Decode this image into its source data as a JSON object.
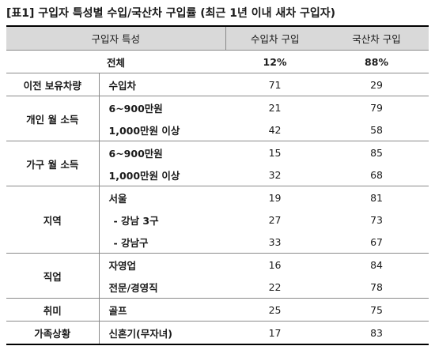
{
  "title": "[표1] 구입자 특성별 수입/국산차 구입률 (최근 1년 이내 새차 구입자)",
  "header": {
    "col1": "구입자 특성",
    "col2": "수입차 구입",
    "col3": "국산차 구입"
  },
  "total": {
    "label": "전체",
    "import": "12%",
    "domestic": "88%"
  },
  "groups": {
    "g1": {
      "label": "이전 보유차량",
      "rows": [
        {
          "label": "수입차",
          "import": "71",
          "domestic": "29"
        }
      ]
    },
    "g2": {
      "label": "개인 월 소득",
      "rows": [
        {
          "label": "6~900만원",
          "import": "21",
          "domestic": "79"
        },
        {
          "label": "1,000만원 이상",
          "import": "42",
          "domestic": "58"
        }
      ]
    },
    "g3": {
      "label": "가구 월 소득",
      "rows": [
        {
          "label": "6~900만원",
          "import": "15",
          "domestic": "85"
        },
        {
          "label": "1,000만원 이상",
          "import": "32",
          "domestic": "68"
        }
      ]
    },
    "g4": {
      "label": "지역",
      "rows": [
        {
          "label": "서울",
          "import": "19",
          "domestic": "81"
        },
        {
          "label": "- 강남 3구",
          "import": "27",
          "domestic": "73"
        },
        {
          "label": "- 강남구",
          "import": "33",
          "domestic": "67"
        }
      ]
    },
    "g5": {
      "label": "직업",
      "rows": [
        {
          "label": "자영업",
          "import": "16",
          "domestic": "84"
        },
        {
          "label": "전문/경영직",
          "import": "22",
          "domestic": "78"
        }
      ]
    },
    "g6": {
      "label": "취미",
      "rows": [
        {
          "label": "골프",
          "import": "25",
          "domestic": "75"
        }
      ]
    },
    "g7": {
      "label": "가족상황",
      "rows": [
        {
          "label": "신혼기(무자녀)",
          "import": "17",
          "domestic": "83"
        }
      ]
    }
  }
}
